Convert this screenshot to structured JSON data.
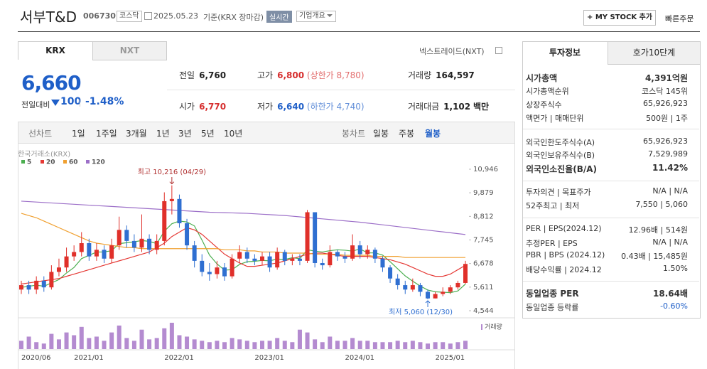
{
  "header": {
    "name": "서부T&D",
    "code": "006730",
    "market": "코스닥",
    "date": "2025.05.23",
    "basis": "기준(KRX 장마감)",
    "realtime": "실시간",
    "overview": "기업개요",
    "mystock": "+ MY STOCK 추가",
    "quick": "빠른주문"
  },
  "tabs": [
    "KRX",
    "NXT"
  ],
  "nxt_link": "넥스트레이드(NXT)",
  "price": {
    "current": "6,660",
    "change_label": "전일대비",
    "change": "100",
    "change_pct": "-1.48%"
  },
  "quote": {
    "prev": {
      "label": "전일",
      "value": "6,760"
    },
    "high": {
      "label": "고가",
      "value": "6,800",
      "limit": "(상한가 8,780)"
    },
    "volume": {
      "label": "거래량",
      "value": "164,597"
    },
    "open": {
      "label": "시가",
      "value": "6,770"
    },
    "low": {
      "label": "저가",
      "value": "6,640",
      "limit": "(하한가 4,740)"
    },
    "amount": {
      "label": "거래대금",
      "value": "1,102",
      "unit": "백만"
    }
  },
  "periods": [
    "선차트",
    "1일",
    "1주일",
    "3개월",
    "1년",
    "3년",
    "5년",
    "10년"
  ],
  "candle_periods": [
    "봉차트",
    "일봉",
    "주봉",
    "월봉"
  ],
  "chart_data": {
    "type": "candlestick",
    "source": "한국거래소(KRX)",
    "up_color": "#e0302a",
    "down_color": "#2f6fd1",
    "categories": [
      "2020/06",
      null,
      null,
      null,
      null,
      null,
      null,
      "2021/01",
      null,
      null,
      null,
      null,
      null,
      null,
      null,
      null,
      null,
      null,
      null,
      "2022/01",
      null,
      null,
      null,
      null,
      null,
      null,
      null,
      null,
      null,
      null,
      null,
      "2023/01",
      null,
      null,
      null,
      null,
      null,
      null,
      null,
      null,
      null,
      null,
      null,
      "2024/01",
      null,
      null,
      null,
      null,
      null,
      null,
      null,
      null,
      null,
      null,
      null,
      "2025/01",
      null,
      null,
      null,
      null
    ],
    "candles": [
      [
        5500,
        5900,
        5300,
        5700
      ],
      [
        5700,
        5900,
        5300,
        5500
      ],
      [
        5500,
        6100,
        5300,
        5900
      ],
      [
        5900,
        6100,
        5400,
        5600
      ],
      [
        5600,
        6600,
        5500,
        6300
      ],
      [
        6300,
        6900,
        6100,
        6500
      ],
      [
        6500,
        7400,
        6300,
        7000
      ],
      [
        7000,
        7500,
        6800,
        7200
      ],
      [
        7200,
        8100,
        7000,
        7600
      ],
      [
        7600,
        7800,
        6800,
        7000
      ],
      [
        7000,
        7600,
        6800,
        7300
      ],
      [
        7300,
        7500,
        6700,
        6900
      ],
      [
        6900,
        7800,
        6700,
        7500
      ],
      [
        7500,
        8800,
        7300,
        8200
      ],
      [
        8200,
        8400,
        7400,
        7700
      ],
      [
        7700,
        8000,
        7200,
        7400
      ],
      [
        7400,
        8900,
        7200,
        7800
      ],
      [
        7800,
        8000,
        7100,
        7300
      ],
      [
        7300,
        8000,
        7100,
        7700
      ],
      [
        7700,
        9900,
        7500,
        9500
      ],
      [
        9500,
        10216,
        8900,
        9600
      ],
      [
        9600,
        9800,
        8300,
        8500
      ],
      [
        8500,
        8700,
        7300,
        7500
      ],
      [
        7500,
        7700,
        6500,
        6800
      ],
      [
        6800,
        7100,
        6100,
        6300
      ],
      [
        6300,
        6700,
        5900,
        6200
      ],
      [
        6200,
        6800,
        6000,
        6500
      ],
      [
        6500,
        6700,
        5900,
        6100
      ],
      [
        6100,
        7100,
        6000,
        6900
      ],
      [
        6900,
        7500,
        6700,
        7200
      ],
      [
        7200,
        7400,
        6700,
        6900
      ],
      [
        6900,
        7100,
        6600,
        6800
      ],
      [
        6800,
        7200,
        6600,
        7000
      ],
      [
        7000,
        7200,
        6300,
        6500
      ],
      [
        6500,
        7400,
        6400,
        7200
      ],
      [
        7200,
        7300,
        6600,
        6800
      ],
      [
        6800,
        7100,
        6600,
        6900
      ],
      [
        6900,
        7100,
        6600,
        6800
      ],
      [
        6800,
        9100,
        6700,
        9000
      ],
      [
        9000,
        9000,
        6500,
        6700
      ],
      [
        6700,
        6900,
        6400,
        6600
      ],
      [
        6600,
        7500,
        6500,
        7200
      ],
      [
        7200,
        7300,
        6800,
        7000
      ],
      [
        7000,
        7200,
        6700,
        6900
      ],
      [
        6900,
        8000,
        6800,
        7500
      ],
      [
        7500,
        7700,
        6900,
        7100
      ],
      [
        7100,
        7500,
        6900,
        7300
      ],
      [
        7300,
        7400,
        6700,
        6900
      ],
      [
        6900,
        7000,
        6300,
        6500
      ],
      [
        6500,
        6600,
        5800,
        6000
      ],
      [
        6000,
        6200,
        5500,
        5700
      ],
      [
        5700,
        5900,
        5300,
        5500
      ],
      [
        5500,
        6000,
        5400,
        5700
      ],
      [
        5700,
        5800,
        5200,
        5400
      ],
      [
        5400,
        5500,
        5060,
        5100
      ],
      [
        5100,
        5400,
        5100,
        5300
      ],
      [
        5300,
        5600,
        5200,
        5400
      ],
      [
        5400,
        5700,
        5300,
        5600
      ],
      [
        5600,
        5900,
        5500,
        5800
      ],
      [
        5800,
        6800,
        5750,
        6660
      ]
    ],
    "series": [
      {
        "name": "5",
        "color": "#4caf50",
        "values": [
          5600,
          5650,
          5700,
          5650,
          5800,
          5950,
          6250,
          6500,
          6900,
          7050,
          7200,
          7200,
          7260,
          7580,
          7620,
          7660,
          7720,
          7680,
          7580,
          8140,
          8480,
          8600,
          8560,
          8380,
          7740,
          7060,
          6660,
          6380,
          6400,
          6640,
          6760,
          6780,
          6820,
          6800,
          6880,
          6860,
          6940,
          6900,
          7300,
          7240,
          7200,
          7260,
          7300,
          7280,
          7240,
          7340,
          7160,
          7160,
          7060,
          6760,
          6440,
          6120,
          5880,
          5660,
          5480,
          5400,
          5380,
          5360,
          5440,
          5750
        ]
      },
      {
        "name": "20",
        "color": "#e53935",
        "values": [
          5750,
          5800,
          5850,
          5900,
          5950,
          6000,
          6100,
          6200,
          6300,
          6400,
          6500,
          6600,
          6700,
          6800,
          6900,
          7000,
          7100,
          7200,
          7400,
          7600,
          7900,
          8100,
          8300,
          8200,
          8000,
          7700,
          7400,
          7100,
          6900,
          6700,
          6550,
          6550,
          6600,
          6650,
          6700,
          6800,
          6900,
          7000,
          7100,
          7150,
          7150,
          7100,
          7050,
          7000,
          7000,
          7000,
          7000,
          6950,
          6900,
          6850,
          6750,
          6650,
          6500,
          6350,
          6200,
          6100,
          6100,
          6200,
          6400,
          6600
        ]
      },
      {
        "name": "60",
        "color": "#f0a030",
        "values": [
          8950,
          8850,
          8750,
          8600,
          8450,
          8300,
          8150,
          8000,
          7850,
          7700,
          7600,
          7550,
          7500,
          7450,
          7400,
          7400,
          7350,
          7350,
          7350,
          7350,
          7350,
          7350,
          7350,
          7350,
          7350,
          7350,
          7350,
          7300,
          7300,
          7300,
          7250,
          7250,
          7200,
          7200,
          7200,
          7150,
          7150,
          7150,
          7150,
          7100,
          7100,
          7100,
          7100,
          7050,
          7050,
          7050,
          7050,
          7000,
          7000,
          7000,
          7000,
          6950,
          6950,
          6950,
          6950,
          6950,
          6950,
          6950,
          6950,
          6950
        ]
      },
      {
        "name": "120",
        "color": "#9c6fc8",
        "values": [
          9500,
          9480,
          9460,
          9440,
          9420,
          9400,
          9380,
          9360,
          9340,
          9320,
          9300,
          9280,
          9260,
          9240,
          9220,
          9200,
          9180,
          9160,
          9140,
          9120,
          9100,
          9080,
          9060,
          9040,
          9020,
          9000,
          8990,
          8980,
          8970,
          8960,
          8950,
          8930,
          8910,
          8890,
          8870,
          8850,
          8820,
          8790,
          8760,
          8730,
          8700,
          8670,
          8640,
          8610,
          8580,
          8550,
          8510,
          8470,
          8430,
          8390,
          8350,
          8310,
          8270,
          8230,
          8190,
          8150,
          8110,
          8070,
          8030,
          7990
        ]
      }
    ],
    "volume": {
      "name": "거래량",
      "color": "#b48bd0",
      "ylim": [
        0,
        100
      ],
      "values": [
        30,
        45,
        25,
        20,
        55,
        35,
        60,
        50,
        80,
        40,
        45,
        30,
        60,
        85,
        40,
        30,
        70,
        35,
        40,
        75,
        95,
        50,
        45,
        35,
        30,
        25,
        30,
        25,
        40,
        35,
        30,
        25,
        30,
        30,
        40,
        30,
        25,
        70,
        60,
        35,
        25,
        45,
        30,
        30,
        40,
        30,
        30,
        25,
        25,
        25,
        30,
        25,
        30,
        25,
        20,
        25,
        25,
        20,
        25,
        30
      ]
    },
    "ylim": [
      4544,
      10946
    ],
    "yticks": [
      {
        "value": 10946,
        "label": "10,946"
      },
      {
        "value": 9879,
        "label": "9,879"
      },
      {
        "value": 8812,
        "label": "8,812"
      },
      {
        "value": 7745,
        "label": "7,745"
      },
      {
        "value": 6678,
        "label": "6,678"
      },
      {
        "value": 5611,
        "label": "5,611"
      },
      {
        "value": 4544,
        "label": "4,544"
      }
    ],
    "high": 10216,
    "high_label": "최고 10,216 (04/29)",
    "low": 5060,
    "low_label": "최저 5,060 (12/30)"
  },
  "invest": {
    "tabs": [
      "투자정보",
      "호가10단계"
    ],
    "rows": [
      {
        "label": "시가총액",
        "value": "4,391억원"
      },
      {
        "label": "시가총액순위",
        "value": "코스닥 145위"
      },
      {
        "label": "상장주식수",
        "value": "65,926,923"
      },
      {
        "label": "액면가 | 매매단위",
        "value": "500원 | 1주"
      },
      {
        "label": "외국인한도주식수(A)",
        "value": "65,926,923"
      },
      {
        "label": "외국인보유주식수(B)",
        "value": "7,529,989"
      },
      {
        "label": "외국인소진율(B/A)",
        "value": "11.42%"
      },
      {
        "label": "투자의견 | 목표주가",
        "value": "N/A | N/A"
      },
      {
        "label": "52주최고 | 최저",
        "value": "7,550 | 5,060"
      },
      {
        "label": "PER | EPS(2024.12)",
        "value": "12.96배 | 514원"
      },
      {
        "label": "추정PER | EPS",
        "value": "N/A | N/A"
      },
      {
        "label": "PBR | BPS (2024.12)",
        "value": "0.43배 | 15,485원"
      },
      {
        "label": "배당수익률 | 2024.12",
        "value": "1.50%"
      },
      {
        "label": "동일업종 PER",
        "value": "18.64배"
      },
      {
        "label": "동일업종 등락률",
        "value": "-0.60%"
      }
    ]
  }
}
